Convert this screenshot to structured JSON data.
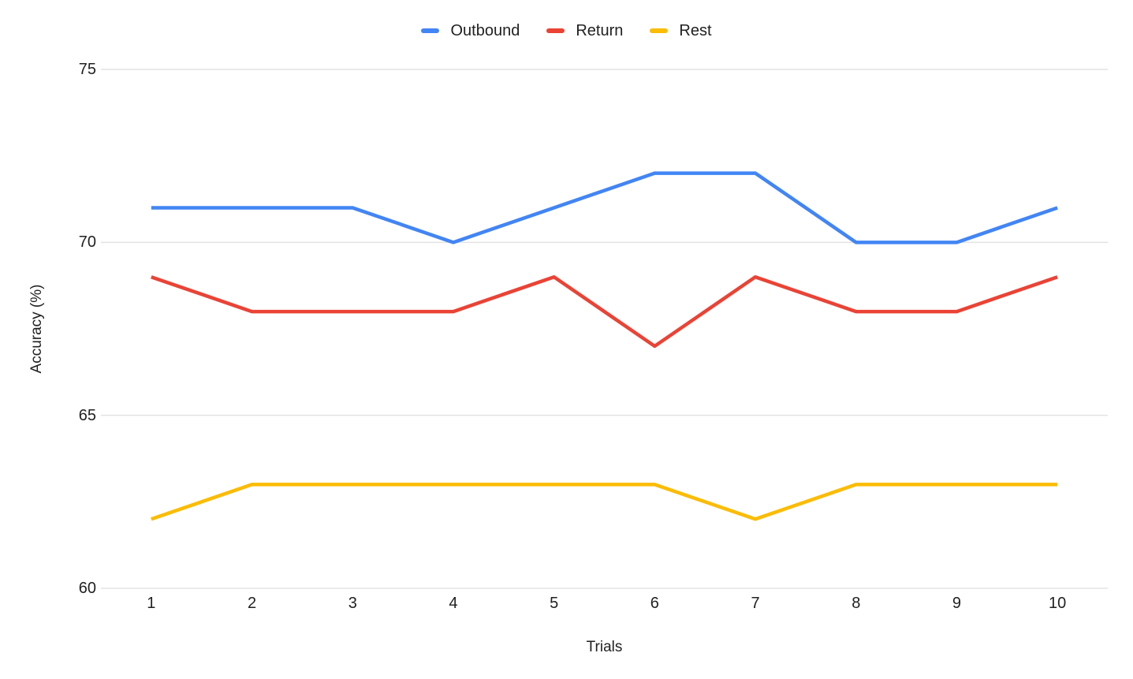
{
  "chart_data": {
    "type": "line",
    "title": "",
    "xlabel": "Trials",
    "ylabel": "Accuracy (%)",
    "categories": [
      "1",
      "2",
      "3",
      "4",
      "5",
      "6",
      "7",
      "8",
      "9",
      "10"
    ],
    "series": [
      {
        "name": "Outbound",
        "color": "#4285F4",
        "values": [
          71,
          71,
          71,
          70,
          71,
          72,
          72,
          70,
          70,
          71
        ]
      },
      {
        "name": "Return",
        "color": "#EA4335",
        "values": [
          69,
          68,
          68,
          68,
          69,
          67,
          69,
          68,
          68,
          69
        ]
      },
      {
        "name": "Rest",
        "color": "#FBBC04",
        "values": [
          62,
          63,
          63,
          63,
          63,
          63,
          62,
          63,
          63,
          63
        ]
      }
    ],
    "ylim": [
      60,
      75
    ],
    "yticks": [
      60,
      65,
      70,
      75
    ],
    "grid": true,
    "legend_position": "top",
    "gridline_color": "#e3e3e3",
    "axis_text_color": "#212121",
    "background_color": "#ffffff"
  }
}
